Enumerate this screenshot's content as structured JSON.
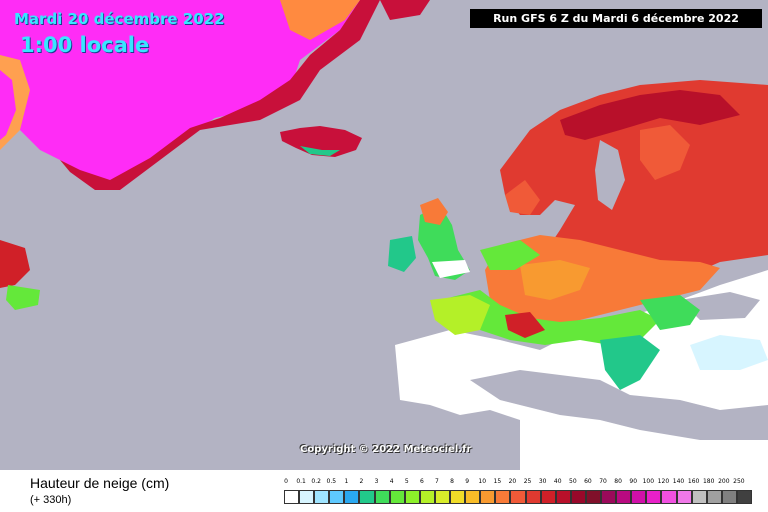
{
  "header": {
    "date_line": "Mardi 20 décembre 2022",
    "time_line": "1:00 locale",
    "run_info": "Run GFS 6 Z du Mardi 6 décembre 2022"
  },
  "copyright": "Copyright © 2022 Meteociel.fr",
  "legend": {
    "title": "Hauteur de neige (cm)",
    "subtitle": "(+ 330h)",
    "ticks": [
      "0",
      "0.1",
      "0.2",
      "0.5",
      "1",
      "2",
      "3",
      "4",
      "5",
      "6",
      "7",
      "8",
      "9",
      "10",
      "15",
      "20",
      "25",
      "30",
      "40",
      "50",
      "60",
      "70",
      "80",
      "90",
      "100",
      "120",
      "140",
      "160",
      "180",
      "200",
      "250"
    ],
    "colors": [
      "#ffffff",
      "#d7f5ff",
      "#9fe4ff",
      "#5ec9ff",
      "#2aa8f0",
      "#22c88a",
      "#3fdc5a",
      "#64e83a",
      "#8cf02a",
      "#b4f028",
      "#d8ec2a",
      "#f0dc28",
      "#f8bc28",
      "#f89a30",
      "#f87a38",
      "#f05a38",
      "#e03a30",
      "#d02028",
      "#b8102a",
      "#98082a",
      "#80102a",
      "#9a0a5a",
      "#b80a80",
      "#d010a8",
      "#e820c8",
      "#f050e0",
      "#f078e8",
      "#c0c0c0",
      "#a0a0a0",
      "#808080",
      "#404040"
    ]
  },
  "map": {
    "ocean_color": "#b3b3c3",
    "bare_land_color": "#ffffff",
    "greenland_color": "#ff2cf6"
  }
}
